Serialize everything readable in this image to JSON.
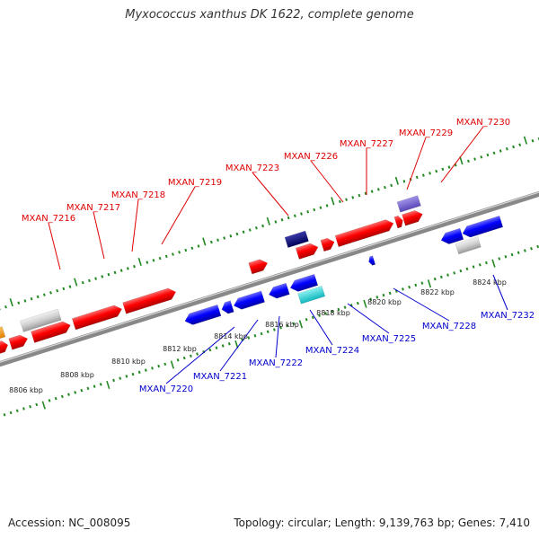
{
  "title": "Myxococcus xanthus DK 1622, complete genome",
  "footer": {
    "accession": "Accession: NC_008095",
    "summary": "Topology: circular; Length: 9,139,763 bp; Genes: 7,410"
  },
  "colors": {
    "forward_strand": "#ff0000",
    "reverse_strand": "#0000ff",
    "backbone": "#888888",
    "ticks": "#228822",
    "label_forward": "#dd0000",
    "label_reverse": "#0000cc"
  },
  "kbp_markers": [
    "8806 kbp",
    "8808 kbp",
    "8810 kbp",
    "8812 kbp",
    "8814 kbp",
    "8816 kbp",
    "8818 kbp",
    "8820 kbp",
    "8822 kbp",
    "8824 kbp"
  ],
  "forward_labels": [
    "MXAN_7216",
    "MXAN_7217",
    "MXAN_7218",
    "MXAN_7219",
    "MXAN_7223",
    "MXAN_7226",
    "MXAN_7227",
    "MXAN_7229",
    "MXAN_7230"
  ],
  "reverse_labels": [
    "MXAN_7220",
    "MXAN_7221",
    "MXAN_7222",
    "MXAN_7224",
    "MXAN_7225",
    "MXAN_7228",
    "MXAN_7232"
  ]
}
